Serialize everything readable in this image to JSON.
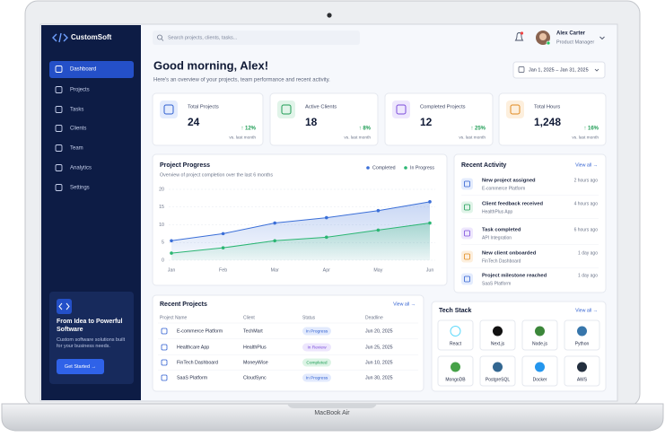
{
  "laptop": {
    "label": "MacBook Air"
  },
  "sidebar": {
    "brand": "CustomSoft",
    "menu": [
      "Dashboard",
      "Projects",
      "Tasks",
      "Clients",
      "Team",
      "Analytics",
      "Settings"
    ],
    "promo": {
      "title": "From Idea to Powerful Software",
      "text": "Custom software solutions built for your business needs.",
      "button": "Get Started →"
    }
  },
  "topbar": {
    "search_placeholder": "Search projects, clients, tasks...",
    "user_name": "Alex Carter",
    "user_role": "Product Manager"
  },
  "header": {
    "greeting": "Good morning, Alex!",
    "subtitle": "Here's an overview of your projects, team performance and recent activity.",
    "date_range": "Jan 1, 2025 – Jan 31, 2025"
  },
  "stats": [
    {
      "label": "Total Projects",
      "value": "24",
      "change": "↑ 12%",
      "note": "vs. last month"
    },
    {
      "label": "Active Clients",
      "value": "18",
      "change": "↑ 8%",
      "note": "vs. last month"
    },
    {
      "label": "Completed Projects",
      "value": "12",
      "change": "↑ 25%",
      "note": "vs. last month"
    },
    {
      "label": "Total Hours",
      "value": "1,248",
      "change": "↑ 16%",
      "note": "vs. last month"
    }
  ],
  "project_progress": {
    "type": "line",
    "title": "Project Progress",
    "subtitle": "Overview of project completion over the last 6 months",
    "categories": [
      "Jan",
      "Feb",
      "Mar",
      "Apr",
      "May",
      "Jun"
    ],
    "series": [
      {
        "name": "Completed",
        "color": "#3b6fd8",
        "values": [
          5.5,
          7.5,
          10.5,
          12,
          14,
          16.5
        ]
      },
      {
        "name": "In Progress",
        "color": "#2bb673",
        "values": [
          2,
          3.5,
          5.5,
          6.5,
          8.5,
          10.5
        ]
      }
    ],
    "ylim": [
      0,
      20
    ],
    "yticks": [
      0,
      5,
      10,
      15,
      20
    ],
    "grid": true
  },
  "recent_activity": {
    "title": "Recent Activity",
    "view_all": "View all →",
    "items": [
      {
        "title": "New project assigned",
        "subtitle": "E-commerce Platform",
        "time": "2 hours ago"
      },
      {
        "title": "Client feedback received",
        "subtitle": "HealthPlus App",
        "time": "4 hours ago"
      },
      {
        "title": "Task completed",
        "subtitle": "API Integration",
        "time": "6 hours ago"
      },
      {
        "title": "New client onboarded",
        "subtitle": "FinTech Dashboard",
        "time": "1 day ago"
      },
      {
        "title": "Project milestone reached",
        "subtitle": "SaaS Platform",
        "time": "1 day ago"
      }
    ]
  },
  "recent_projects": {
    "title": "Recent Projects",
    "view_all": "View all →",
    "columns": [
      "Project Name",
      "Client",
      "Status",
      "Deadline"
    ],
    "rows": [
      {
        "name": "E-commerce Platform",
        "client": "TechMart",
        "status": "In Progress",
        "status_color": "#2f5fd0",
        "status_bg": "#e2eafd",
        "deadline": "Jun 20, 2025"
      },
      {
        "name": "Healthcare App",
        "client": "HealthPlus",
        "status": "In Review",
        "status_color": "#7c4ddb",
        "status_bg": "#ede6fd",
        "deadline": "Jun 25, 2025"
      },
      {
        "name": "FinTech Dashboard",
        "client": "MoneyWise",
        "status": "Completed",
        "status_color": "#1f9d55",
        "status_bg": "#dcf4e5",
        "deadline": "Jun 10, 2025"
      },
      {
        "name": "SaaS Platform",
        "client": "CloudSync",
        "status": "In Progress",
        "status_color": "#2f5fd0",
        "status_bg": "#e2eafd",
        "deadline": "Jun 30, 2025"
      }
    ]
  },
  "tech_stack": {
    "title": "Tech Stack",
    "view_all": "View all →",
    "items": [
      "React",
      "Next.js",
      "Node.js",
      "Python",
      "MongoDB",
      "PostgreSQL",
      "Docker",
      "AWS"
    ]
  }
}
